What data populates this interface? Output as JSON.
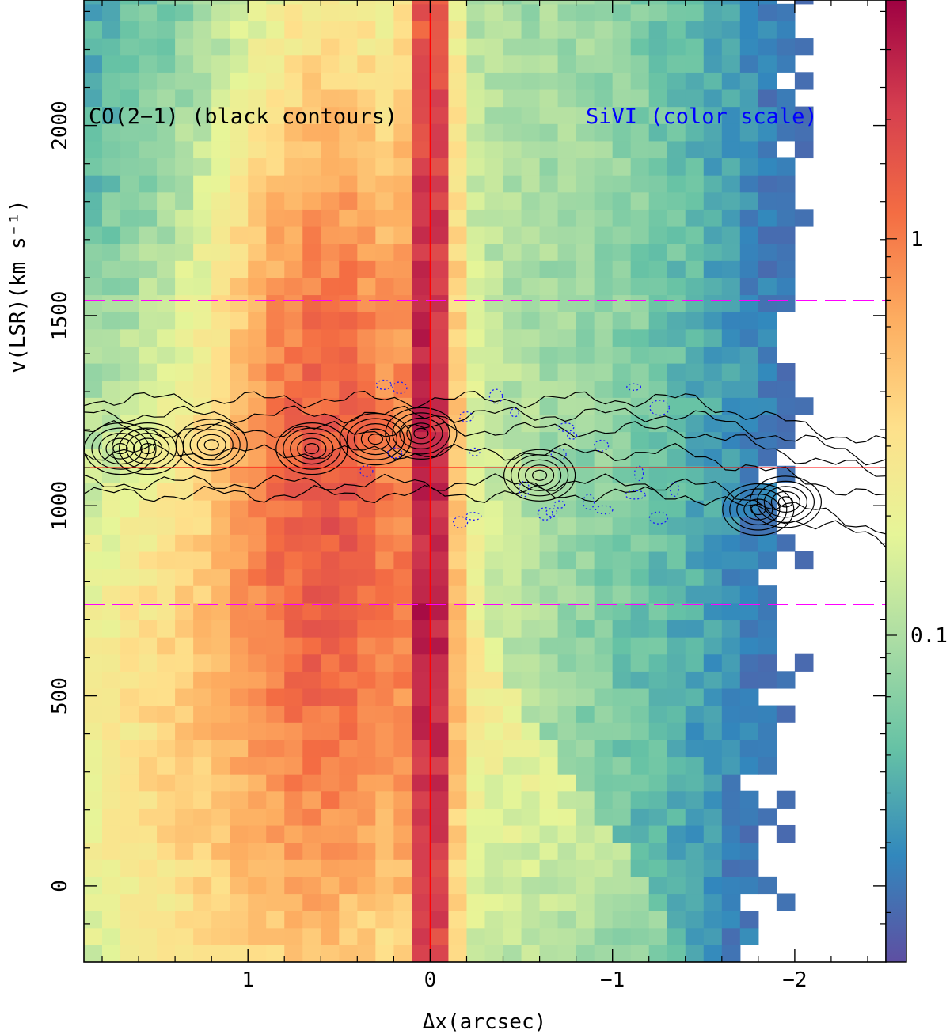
{
  "chart_data": {
    "type": "heatmap",
    "title": "",
    "xlabel": "Δx(arcsec)",
    "ylabel": "v(LSR)(km s⁻¹)",
    "xlim": [
      1.9,
      -2.5
    ],
    "ylim": [
      -200,
      2330
    ],
    "x_axis_inverted": true,
    "x_ticks": [
      1,
      0,
      -1,
      -2
    ],
    "x_tick_labels": [
      "1",
      "0",
      "−1",
      "−2"
    ],
    "y_ticks": [
      0,
      500,
      1000,
      1500,
      2000
    ],
    "y_tick_labels": [
      "0",
      "500",
      "1000",
      "1500",
      "2000"
    ],
    "colorbar": {
      "scale": "log",
      "range": [
        0.015,
        4.0
      ],
      "tick_values": [
        0.1,
        1
      ],
      "tick_labels": [
        "0.1",
        "1"
      ],
      "colormap": "Spectral_r",
      "stops": [
        "#5e4fa2",
        "#3288bd",
        "#66c2a5",
        "#abdda4",
        "#e6f598",
        "#fee08b",
        "#fdae61",
        "#f46d43",
        "#d53e4f",
        "#9e0142"
      ]
    },
    "annotations": [
      {
        "text": "CO(2−1) (black contours)",
        "color": "#000000"
      },
      {
        "text": "SiVI (color scale)",
        "color": "#0000ff"
      }
    ],
    "reference_lines": [
      {
        "orientation": "vertical",
        "x": 0,
        "color": "#ff0000",
        "style": "solid"
      },
      {
        "orientation": "horizontal",
        "y": 1100,
        "color": "#ff0000",
        "style": "solid"
      },
      {
        "orientation": "horizontal",
        "y": 1540,
        "color": "#ff00ff",
        "style": "dashed"
      },
      {
        "orientation": "horizontal",
        "y": 740,
        "color": "#ff00ff",
        "style": "dashed"
      }
    ],
    "contour_clumps": [
      {
        "x": 1.7,
        "y": 1150
      },
      {
        "x": 1.55,
        "y": 1150
      },
      {
        "x": 1.2,
        "y": 1160
      },
      {
        "x": 0.65,
        "y": 1150
      },
      {
        "x": 0.3,
        "y": 1175
      },
      {
        "x": 0.05,
        "y": 1190
      },
      {
        "x": -0.6,
        "y": 1080
      },
      {
        "x": -1.8,
        "y": 990
      },
      {
        "x": -1.95,
        "y": 1010
      }
    ]
  }
}
